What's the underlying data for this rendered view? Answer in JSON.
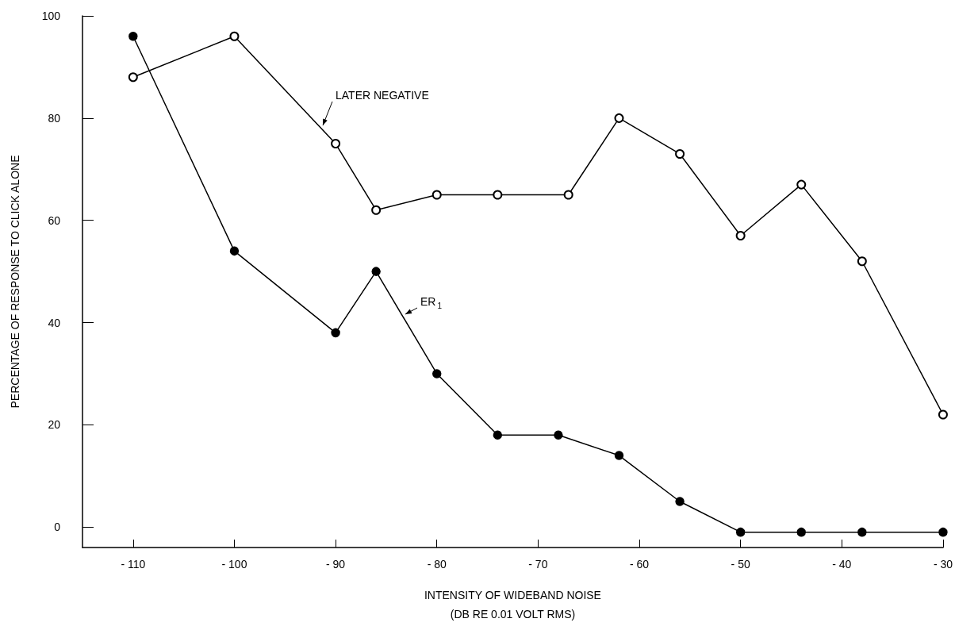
{
  "chart_data": {
    "type": "line",
    "xlabel": "INTENSITY OF WIDEBAND NOISE\n(DB RE 0.01 VOLT RMS)",
    "ylabel": "PERCENTAGE OF RESPONSE TO CLICK ALONE",
    "series": [
      {
        "name": "LATER NEGATIVE",
        "color": "#000000",
        "marker": "circle",
        "x": [
          -110,
          -100,
          -90,
          -86,
          -80,
          -74,
          -67,
          -62,
          -56,
          -50,
          -44,
          -38,
          -30
        ],
        "values": [
          88,
          96,
          75,
          62,
          65,
          65,
          65,
          80,
          73,
          57,
          67,
          52,
          22
        ]
      },
      {
        "name": "ER$_{1}$",
        "color": "#000000",
        "marker": "circle",
        "x": [
          -110,
          -100,
          -90,
          -86,
          -80,
          -74,
          -68,
          -62,
          -56,
          -50,
          -44,
          -38,
          -30
        ],
        "values": [
          96,
          54,
          38,
          50,
          30,
          18,
          18,
          14,
          5,
          -1,
          -1,
          -1,
          -1
        ]
      }
    ],
    "xlim": [
      -115,
      -30
    ],
    "xticks": [
      -110,
      -100,
      -90,
      -80,
      -70,
      -60,
      -50,
      -40,
      -30
    ],
    "ylim": [
      -4,
      100
    ],
    "yticks": [
      0,
      20,
      40,
      60,
      80,
      100
    ],
    "grid": false,
    "legend": false,
    "line_style": "solid"
  }
}
